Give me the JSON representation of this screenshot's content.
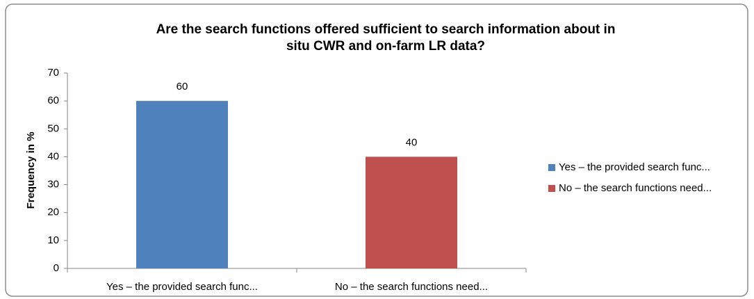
{
  "chart_data": {
    "type": "bar",
    "title": [
      "Are the search functions offered sufficient to search information about in",
      "situ CWR and on-farm LR data?"
    ],
    "y_label": "Frequency in %",
    "categories": [
      "Yes – the provided search func...",
      "No – the search functions need..."
    ],
    "values": [
      60,
      40
    ],
    "colors": [
      "#4f81bd",
      "#c0504d"
    ],
    "ylim": [
      0,
      70
    ],
    "yticks": [
      0,
      10,
      20,
      30,
      40,
      50,
      60,
      70
    ],
    "grid": false,
    "legend": "right"
  }
}
